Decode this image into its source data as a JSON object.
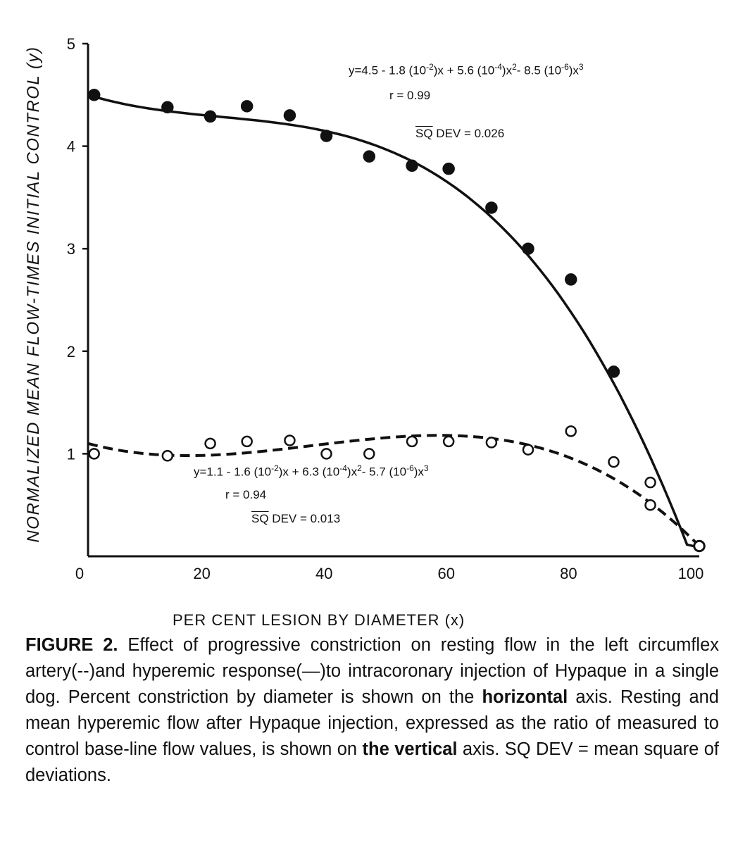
{
  "chart_data": {
    "type": "scatter",
    "xlabel": "PER CENT LESION BY DIAMETER (x)",
    "ylabel": "NORMALIZED MEAN FLOW-TIMES INITIAL CONTROL (y)",
    "xlim": [
      0,
      100
    ],
    "ylim": [
      0,
      5
    ],
    "x_ticks": [
      "0",
      "20",
      "40",
      "60",
      "80",
      "100"
    ],
    "y_ticks": [
      "1",
      "2",
      "3",
      "4",
      "5"
    ],
    "grid": false,
    "series": [
      {
        "key": "hyperemic",
        "marker": "filled-circle",
        "line": "solid",
        "points": [
          [
            1,
            4.5
          ],
          [
            13,
            4.38
          ],
          [
            20,
            4.29
          ],
          [
            26,
            4.39
          ],
          [
            33,
            4.3
          ],
          [
            39,
            4.1
          ],
          [
            46,
            3.9
          ],
          [
            53,
            3.81
          ],
          [
            59,
            3.78
          ],
          [
            66,
            3.4
          ],
          [
            72,
            3.0
          ],
          [
            79,
            2.7
          ],
          [
            86,
            1.8
          ],
          [
            100,
            0.1
          ]
        ],
        "fit": [
          4.5,
          -0.018,
          0.00056,
          -8.5e-06
        ],
        "equation": {
          "lines": [
            "y=4.5 - 1.8 (10",
            "-2",
            ")x + 5.6 (10",
            "-4",
            ")x",
            "2",
            "- 8.5 (10",
            "-6",
            ")x",
            "3"
          ],
          "r": "r = 0.99",
          "sq": "SQ",
          "dev": "DEV = 0.026"
        }
      },
      {
        "key": "resting",
        "marker": "open-circle",
        "line": "dashed",
        "points": [
          [
            1,
            1.0
          ],
          [
            13,
            0.98
          ],
          [
            20,
            1.1
          ],
          [
            26,
            1.12
          ],
          [
            33,
            1.13
          ],
          [
            39,
            1.0
          ],
          [
            46,
            1.0
          ],
          [
            53,
            1.12
          ],
          [
            59,
            1.12
          ],
          [
            66,
            1.11
          ],
          [
            72,
            1.04
          ],
          [
            79,
            1.22
          ],
          [
            86,
            0.92
          ],
          [
            92,
            0.72
          ],
          [
            92,
            0.5
          ],
          [
            100,
            0.1
          ]
        ],
        "fit": [
          1.1,
          -0.016,
          0.00063,
          -5.7e-06
        ],
        "equation": {
          "lines": [
            "y=1.1 - 1.6 (10",
            "-2",
            ")x + 6.3 (10",
            "-4",
            ")x",
            "2",
            "- 5.7 (10",
            "-6",
            ")x",
            "3"
          ],
          "r": "r = 0.94",
          "sq": "SQ",
          "dev": "DEV = 0.013"
        }
      }
    ]
  },
  "caption": {
    "label": "FIGURE 2.",
    "text_1": " Effect of progressive constriction on resting flow in the left circumflex artery(--)and hyperemic response(—)to intracoronary injection of Hypaque in a single dog. Percent constriction by diameter is shown on the ",
    "bold_1": "horizontal",
    "text_2": " axis. Resting and mean hyperemic flow after Hypaque injection, expressed as the ratio of measured to control base-line flow values, is shown on ",
    "bold_2a": "the",
    "bold_2": "vertical",
    "text_3": " axis. SQ DEV = mean square of deviations."
  }
}
